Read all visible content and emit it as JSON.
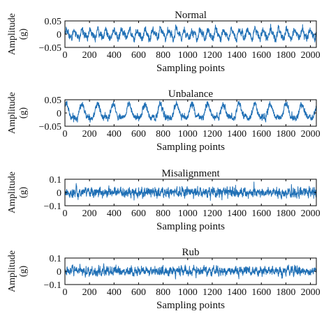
{
  "chart_data": [
    {
      "type": "line",
      "title": "Normal",
      "xlabel": "Sampling points",
      "ylabel": [
        "Amplitude",
        "(g)"
      ],
      "xlim": [
        0,
        2048
      ],
      "ylim": [
        -0.05,
        0.05
      ],
      "xticks": [
        0,
        200,
        400,
        600,
        800,
        1000,
        1200,
        1400,
        1600,
        1800,
        2000
      ],
      "xtick_labels": [
        "0",
        "200",
        "400",
        "600",
        "800",
        "1000",
        "1200",
        "1400",
        "1600",
        "1800",
        "2000"
      ],
      "yticks": [
        -0.05,
        0,
        0.05
      ],
      "ytick_labels": [
        "−0.05",
        "0",
        "0.05"
      ],
      "series": [
        {
          "color": "#1f6fb5",
          "n": 2048,
          "periodic_component": {
            "amplitude": 0.015,
            "period": 64
          },
          "noise_std": 0.008,
          "peak_range": [
            -0.03,
            0.045
          ]
        }
      ]
    },
    {
      "type": "line",
      "title": "Unbalance",
      "xlabel": "Sampling points",
      "ylabel": [
        "Amplitude",
        "(g)"
      ],
      "xlim": [
        0,
        2048
      ],
      "ylim": [
        -0.05,
        0.05
      ],
      "xticks": [
        0,
        200,
        400,
        600,
        800,
        1000,
        1200,
        1400,
        1600,
        1800,
        2000
      ],
      "xtick_labels": [
        "0",
        "200",
        "400",
        "600",
        "800",
        "1000",
        "1200",
        "1400",
        "1600",
        "1800",
        "2000"
      ],
      "yticks": [
        -0.05,
        0,
        0.05
      ],
      "ytick_labels": [
        "−0.05",
        "0",
        "0.05"
      ],
      "series": [
        {
          "color": "#1f6fb5",
          "n": 2048,
          "periodic_component": {
            "amplitude": 0.025,
            "period": 128
          },
          "noise_std": 0.007,
          "peak_range": [
            -0.04,
            0.045
          ]
        }
      ]
    },
    {
      "type": "line",
      "title": "Misalignment",
      "xlabel": "Sampling points",
      "ylabel": [
        "Amplitude",
        "(g)"
      ],
      "xlim": [
        0,
        2048
      ],
      "ylim": [
        -0.1,
        0.1
      ],
      "xticks": [
        0,
        200,
        400,
        600,
        800,
        1000,
        1200,
        1400,
        1600,
        1800,
        2000
      ],
      "xtick_labels": [
        "0",
        "200",
        "400",
        "600",
        "800",
        "1000",
        "1200",
        "1400",
        "1600",
        "1800",
        "2000"
      ],
      "yticks": [
        -0.1,
        0,
        0.1
      ],
      "ytick_labels": [
        "−0.1",
        "0",
        "0.1"
      ],
      "series": [
        {
          "color": "#1f6fb5",
          "n": 2048,
          "periodic_component": {
            "amplitude": 0.01,
            "period": 24
          },
          "noise_std": 0.02,
          "peak_range": [
            -0.09,
            0.09
          ]
        }
      ]
    },
    {
      "type": "line",
      "title": "Rub",
      "xlabel": "Sampling points",
      "ylabel": [
        "Amplitude",
        "(g)"
      ],
      "xlim": [
        0,
        2048
      ],
      "ylim": [
        -0.1,
        0.1
      ],
      "xticks": [
        0,
        200,
        400,
        600,
        800,
        1000,
        1200,
        1400,
        1600,
        1800,
        2000
      ],
      "xtick_labels": [
        "0",
        "200",
        "400",
        "600",
        "800",
        "1000",
        "1200",
        "1400",
        "1600",
        "1800",
        "2000"
      ],
      "yticks": [
        -0.1,
        0,
        0.1
      ],
      "ytick_labels": [
        "−0.1",
        "0",
        "0.1"
      ],
      "series": [
        {
          "color": "#1f6fb5",
          "n": 2048,
          "periodic_component": {
            "amplitude": 0.012,
            "period": 32
          },
          "noise_std": 0.018,
          "peak_range": [
            -0.07,
            0.085
          ]
        }
      ]
    }
  ]
}
